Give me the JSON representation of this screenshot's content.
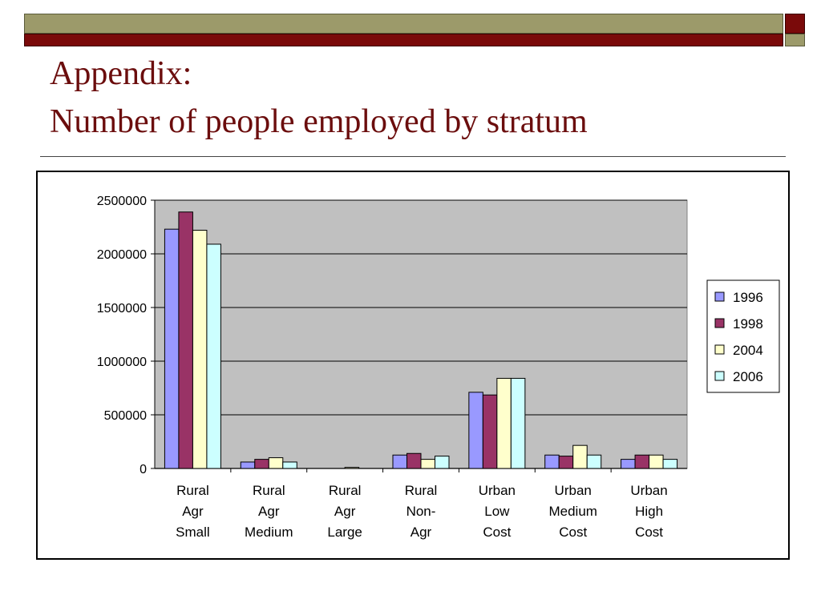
{
  "slide": {
    "title_line1": "Appendix:",
    "title_line2": "Number of people employed by stratum"
  },
  "colors": {
    "accent_olive": "#9c9a6a",
    "accent_maroon": "#7a0a0a",
    "title": "#6b0d0d",
    "plot_background": "#c0c0c0"
  },
  "chart_data": {
    "type": "bar",
    "title": "",
    "xlabel": "",
    "ylabel": "",
    "ylim": [
      0,
      2500000
    ],
    "y_ticks": [
      "0",
      "500000",
      "1000000",
      "1500000",
      "2000000",
      "2500000"
    ],
    "grid": true,
    "legend_position": "right",
    "categories": [
      [
        "Rural",
        "Agr",
        "Small"
      ],
      [
        "Rural",
        "Agr",
        "Medium"
      ],
      [
        "Rural",
        "Agr",
        "Large"
      ],
      [
        "Rural",
        "Non-",
        "Agr"
      ],
      [
        "Urban",
        "Low",
        "Cost"
      ],
      [
        "Urban",
        "Medium",
        "Cost"
      ],
      [
        "Urban",
        "High",
        "Cost"
      ]
    ],
    "series": [
      {
        "name": "1996",
        "color": "#9999ff",
        "values": [
          2230000,
          60000,
          0,
          125000,
          710000,
          125000,
          85000
        ]
      },
      {
        "name": "1998",
        "color": "#993366",
        "values": [
          2390000,
          85000,
          0,
          140000,
          685000,
          115000,
          125000
        ]
      },
      {
        "name": "2004",
        "color": "#ffffcc",
        "values": [
          2220000,
          100000,
          10000,
          85000,
          840000,
          215000,
          125000
        ]
      },
      {
        "name": "2006",
        "color": "#ccffff",
        "values": [
          2090000,
          60000,
          0,
          115000,
          840000,
          125000,
          85000
        ]
      }
    ]
  }
}
